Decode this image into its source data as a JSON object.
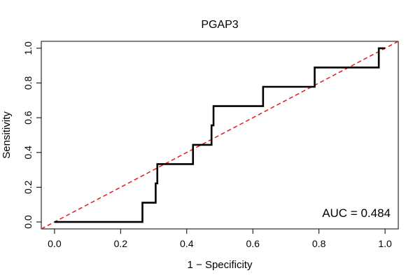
{
  "chart_data": {
    "type": "line",
    "title": "PGAP3",
    "xlabel": "1 − Specificity",
    "ylabel": "Sensitivity",
    "xlim": [
      -0.04,
      1.04
    ],
    "ylim": [
      -0.04,
      1.04
    ],
    "xticks": [
      0.0,
      0.2,
      0.4,
      0.6,
      0.8,
      1.0
    ],
    "xtick_labels": [
      "0.0",
      "0.2",
      "0.4",
      "0.6",
      "0.8",
      "1.0"
    ],
    "yticks": [
      0.0,
      0.2,
      0.4,
      0.6,
      0.8,
      1.0
    ],
    "ytick_labels": [
      "0.0",
      "0.2",
      "0.4",
      "0.6",
      "0.8",
      "1.0"
    ],
    "annotation": "AUC = 0.484",
    "series": [
      {
        "name": "ROC curve",
        "color": "#000000",
        "style": "solid",
        "x": [
          0.0,
          0.266,
          0.266,
          0.306,
          0.306,
          0.311,
          0.311,
          0.419,
          0.419,
          0.475,
          0.475,
          0.481,
          0.481,
          0.631,
          0.631,
          0.787,
          0.787,
          0.981,
          0.981,
          1.0
        ],
        "y": [
          0.0,
          0.0,
          0.111,
          0.111,
          0.222,
          0.222,
          0.333,
          0.333,
          0.444,
          0.444,
          0.556,
          0.556,
          0.667,
          0.667,
          0.778,
          0.778,
          0.889,
          0.889,
          1.0,
          1.0
        ]
      },
      {
        "name": "Reference diagonal",
        "color": "#e31a1c",
        "style": "dashed",
        "x": [
          -0.04,
          1.04
        ],
        "y": [
          -0.04,
          1.04
        ]
      }
    ]
  }
}
